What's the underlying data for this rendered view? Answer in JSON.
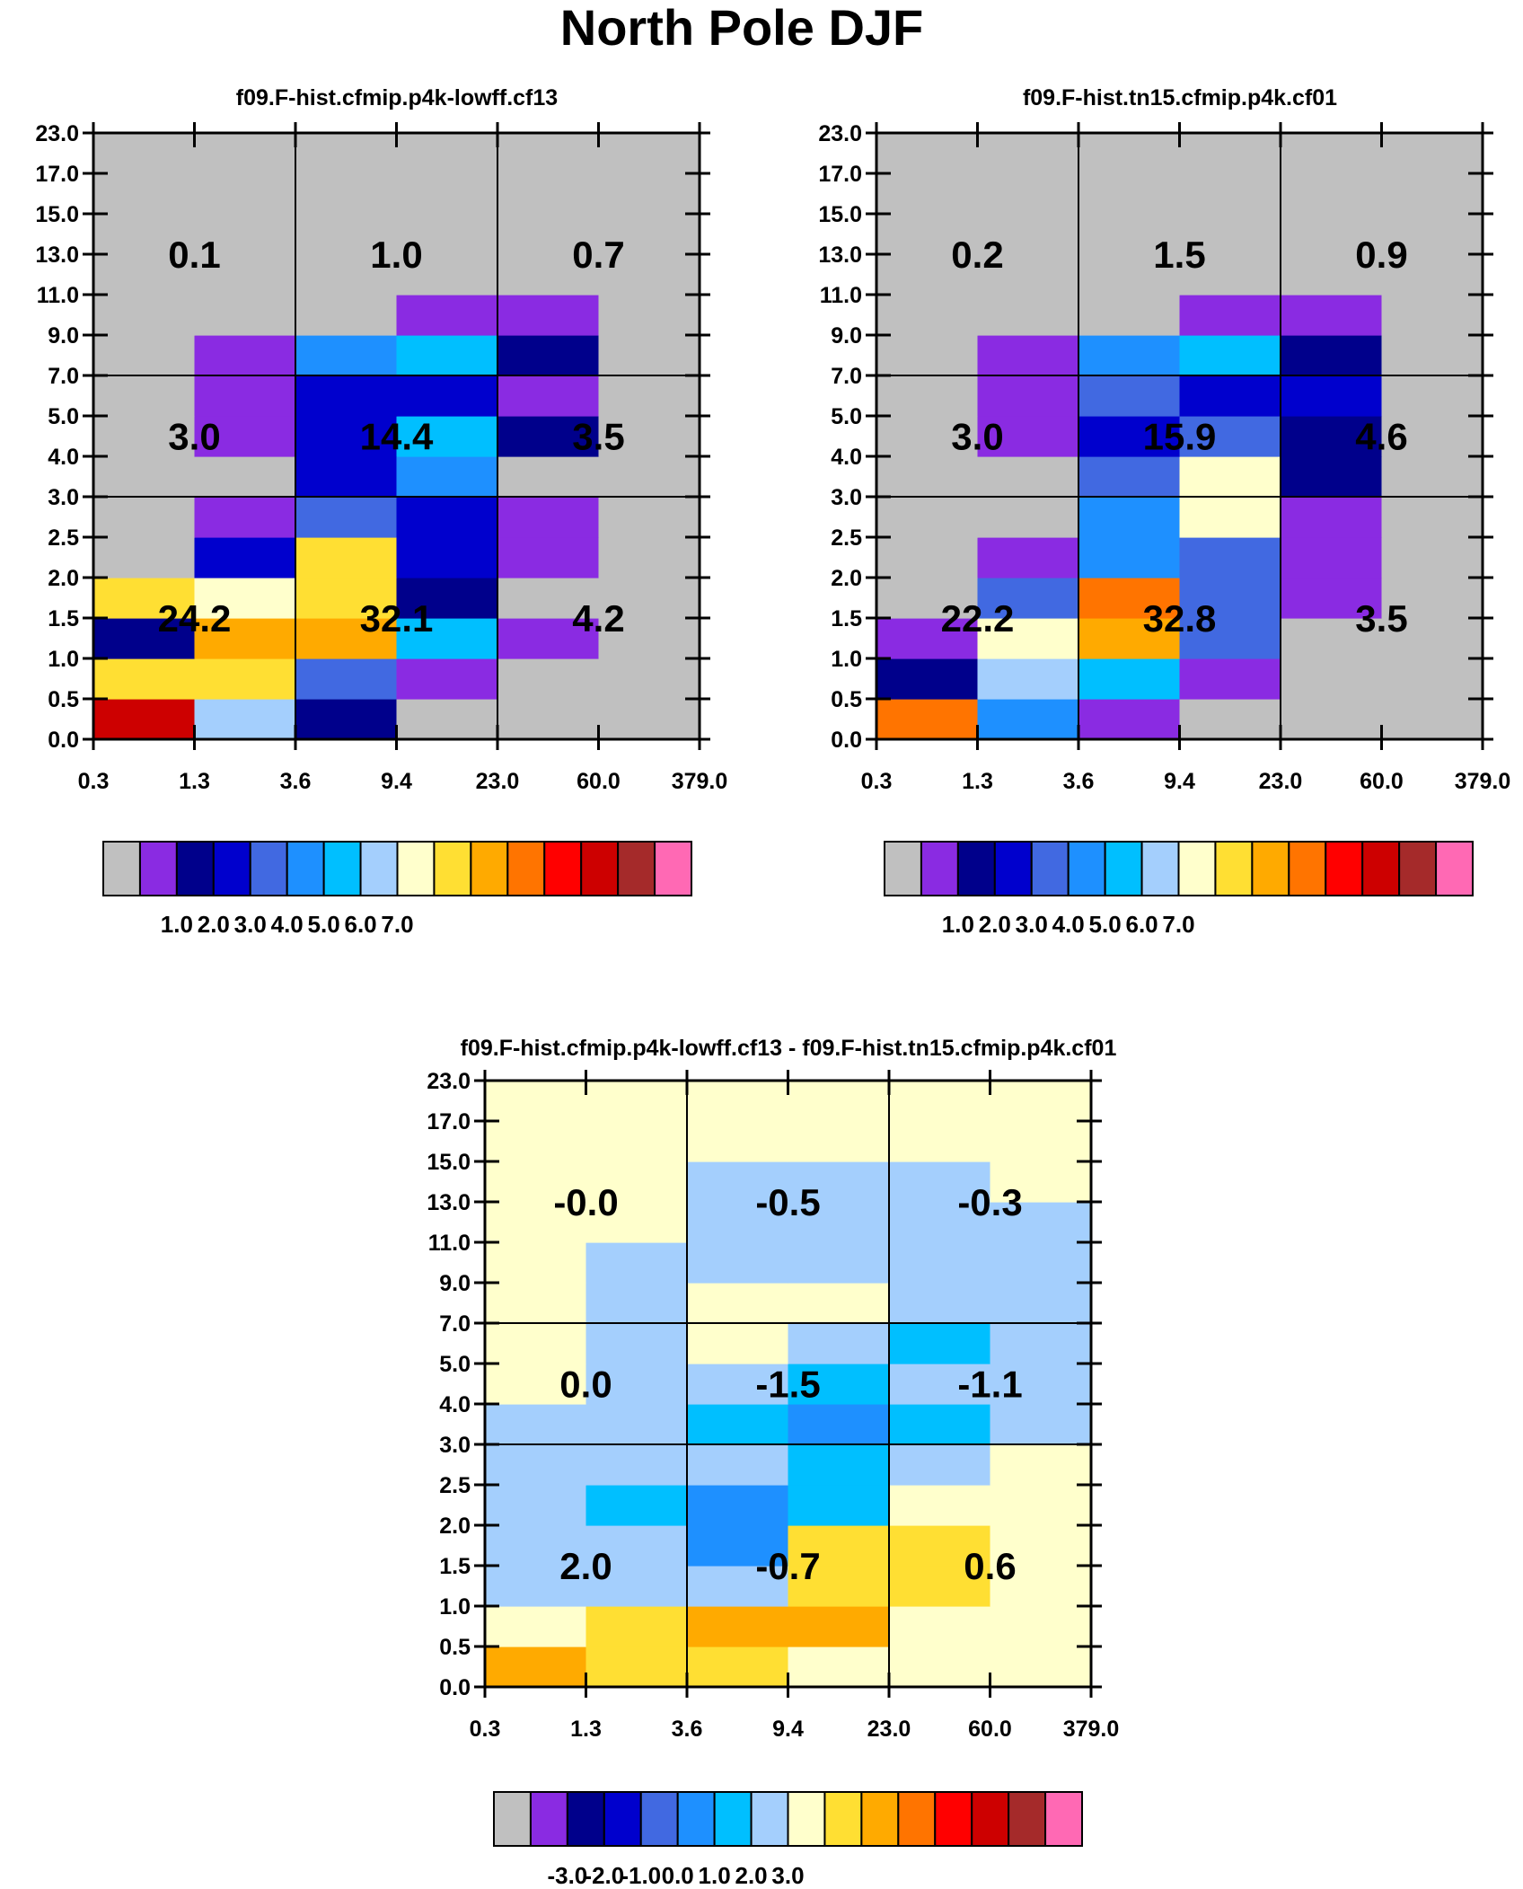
{
  "main_title": "North Pole DJF",
  "palette": [
    "#c0c0c0",
    "#8a2be2",
    "#00008b",
    "#0000cd",
    "#4169e1",
    "#1e90ff",
    "#00bfff",
    "#a4cffd",
    "#ffffcc",
    "#ffdf33",
    "#ffaa00",
    "#ff7400",
    "#ff0000",
    "#cd0000",
    "#a52a2a",
    "#ff69b4"
  ],
  "chart_data": [
    {
      "type": "heatmap",
      "title": "f09.F-hist.cfmip.p4k-lowff.cf13",
      "xticks": [
        "0.3",
        "1.3",
        "3.6",
        "9.4",
        "23.0",
        "60.0",
        "379.0"
      ],
      "yticks": [
        "0.0",
        "0.5",
        "1.0",
        "1.5",
        "2.0",
        "2.5",
        "3.0",
        "4.0",
        "5.0",
        "7.0",
        "9.0",
        "11.0",
        "13.0",
        "15.0",
        "17.0",
        "23.0"
      ],
      "cells": [
        [
          13,
          7,
          2,
          0,
          0,
          0
        ],
        [
          9,
          9,
          4,
          1,
          0,
          0
        ],
        [
          2,
          10,
          10,
          6,
          1,
          0
        ],
        [
          9,
          8,
          9,
          2,
          0,
          0
        ],
        [
          0,
          3,
          9,
          3,
          1,
          0
        ],
        [
          0,
          1,
          4,
          3,
          1,
          0
        ],
        [
          0,
          0,
          3,
          5,
          0,
          0
        ],
        [
          0,
          1,
          3,
          6,
          2,
          0
        ],
        [
          0,
          1,
          3,
          3,
          1,
          0
        ],
        [
          0,
          1,
          5,
          6,
          2,
          0
        ],
        [
          0,
          0,
          0,
          1,
          1,
          0
        ],
        [
          0,
          0,
          0,
          0,
          0,
          0
        ],
        [
          0,
          0,
          0,
          0,
          0,
          0
        ],
        [
          0,
          0,
          0,
          0,
          0,
          0
        ],
        [
          0,
          0,
          0,
          0,
          0,
          0
        ]
      ],
      "region_values": [
        [
          "24.2",
          "32.1",
          "4.2"
        ],
        [
          "3.0",
          "14.4",
          "3.5"
        ],
        [
          "0.1",
          "1.0",
          "0.7"
        ]
      ],
      "colorbar_labels": [
        "1.0",
        "2.0",
        "3.0",
        "4.0",
        "5.0",
        "6.0",
        "7.0"
      ]
    },
    {
      "type": "heatmap",
      "title": "f09.F-hist.tn15.cfmip.p4k.cf01",
      "xticks": [
        "0.3",
        "1.3",
        "3.6",
        "9.4",
        "23.0",
        "60.0",
        "379.0"
      ],
      "yticks": [
        "0.0",
        "0.5",
        "1.0",
        "1.5",
        "2.0",
        "2.5",
        "3.0",
        "4.0",
        "5.0",
        "7.0",
        "9.0",
        "11.0",
        "13.0",
        "15.0",
        "17.0",
        "23.0"
      ],
      "cells": [
        [
          11,
          5,
          1,
          0,
          0,
          0
        ],
        [
          2,
          7,
          6,
          1,
          0,
          0
        ],
        [
          1,
          8,
          10,
          4,
          0,
          0
        ],
        [
          0,
          4,
          11,
          4,
          1,
          0
        ],
        [
          0,
          1,
          5,
          4,
          1,
          0
        ],
        [
          0,
          0,
          5,
          8,
          1,
          0
        ],
        [
          0,
          0,
          4,
          8,
          2,
          0
        ],
        [
          0,
          1,
          3,
          4,
          2,
          0
        ],
        [
          0,
          1,
          4,
          3,
          3,
          0
        ],
        [
          0,
          1,
          5,
          6,
          2,
          0
        ],
        [
          0,
          0,
          0,
          1,
          1,
          0
        ],
        [
          0,
          0,
          0,
          0,
          0,
          0
        ],
        [
          0,
          0,
          0,
          0,
          0,
          0
        ],
        [
          0,
          0,
          0,
          0,
          0,
          0
        ],
        [
          0,
          0,
          0,
          0,
          0,
          0
        ]
      ],
      "region_values": [
        [
          "22.2",
          "32.8",
          "3.5"
        ],
        [
          "3.0",
          "15.9",
          "4.6"
        ],
        [
          "0.2",
          "1.5",
          "0.9"
        ]
      ],
      "colorbar_labels": [
        "1.0",
        "2.0",
        "3.0",
        "4.0",
        "5.0",
        "6.0",
        "7.0"
      ]
    },
    {
      "type": "heatmap",
      "title": "f09.F-hist.cfmip.p4k-lowff.cf13 - f09.F-hist.tn15.cfmip.p4k.cf01",
      "xticks": [
        "0.3",
        "1.3",
        "3.6",
        "9.4",
        "23.0",
        "60.0",
        "379.0"
      ],
      "yticks": [
        "0.0",
        "0.5",
        "1.0",
        "1.5",
        "2.0",
        "2.5",
        "3.0",
        "4.0",
        "5.0",
        "7.0",
        "9.0",
        "11.0",
        "13.0",
        "15.0",
        "17.0",
        "23.0"
      ],
      "cells": [
        [
          10,
          9,
          9,
          8,
          8,
          8
        ],
        [
          8,
          9,
          10,
          10,
          8,
          8
        ],
        [
          7,
          7,
          7,
          9,
          9,
          8
        ],
        [
          7,
          7,
          5,
          9,
          9,
          8
        ],
        [
          7,
          6,
          5,
          6,
          8,
          8
        ],
        [
          7,
          7,
          7,
          6,
          7,
          8
        ],
        [
          7,
          7,
          6,
          5,
          6,
          7
        ],
        [
          8,
          7,
          7,
          6,
          7,
          7
        ],
        [
          8,
          7,
          8,
          7,
          6,
          7
        ],
        [
          8,
          7,
          8,
          8,
          7,
          7
        ],
        [
          8,
          7,
          7,
          7,
          7,
          7
        ],
        [
          8,
          8,
          7,
          7,
          7,
          7
        ],
        [
          8,
          8,
          7,
          7,
          7,
          8
        ],
        [
          8,
          8,
          8,
          8,
          8,
          8
        ],
        [
          8,
          8,
          8,
          8,
          8,
          8
        ]
      ],
      "region_values": [
        [
          "2.0",
          "-0.7",
          "0.6"
        ],
        [
          "0.0",
          "-1.5",
          "-1.1"
        ],
        [
          "-0.0",
          "-0.5",
          "-0.3"
        ]
      ],
      "colorbar_labels": [
        "-3.0",
        "-2.0",
        "-1.0",
        "0.0",
        "1.0",
        "2.0",
        "3.0"
      ]
    }
  ]
}
